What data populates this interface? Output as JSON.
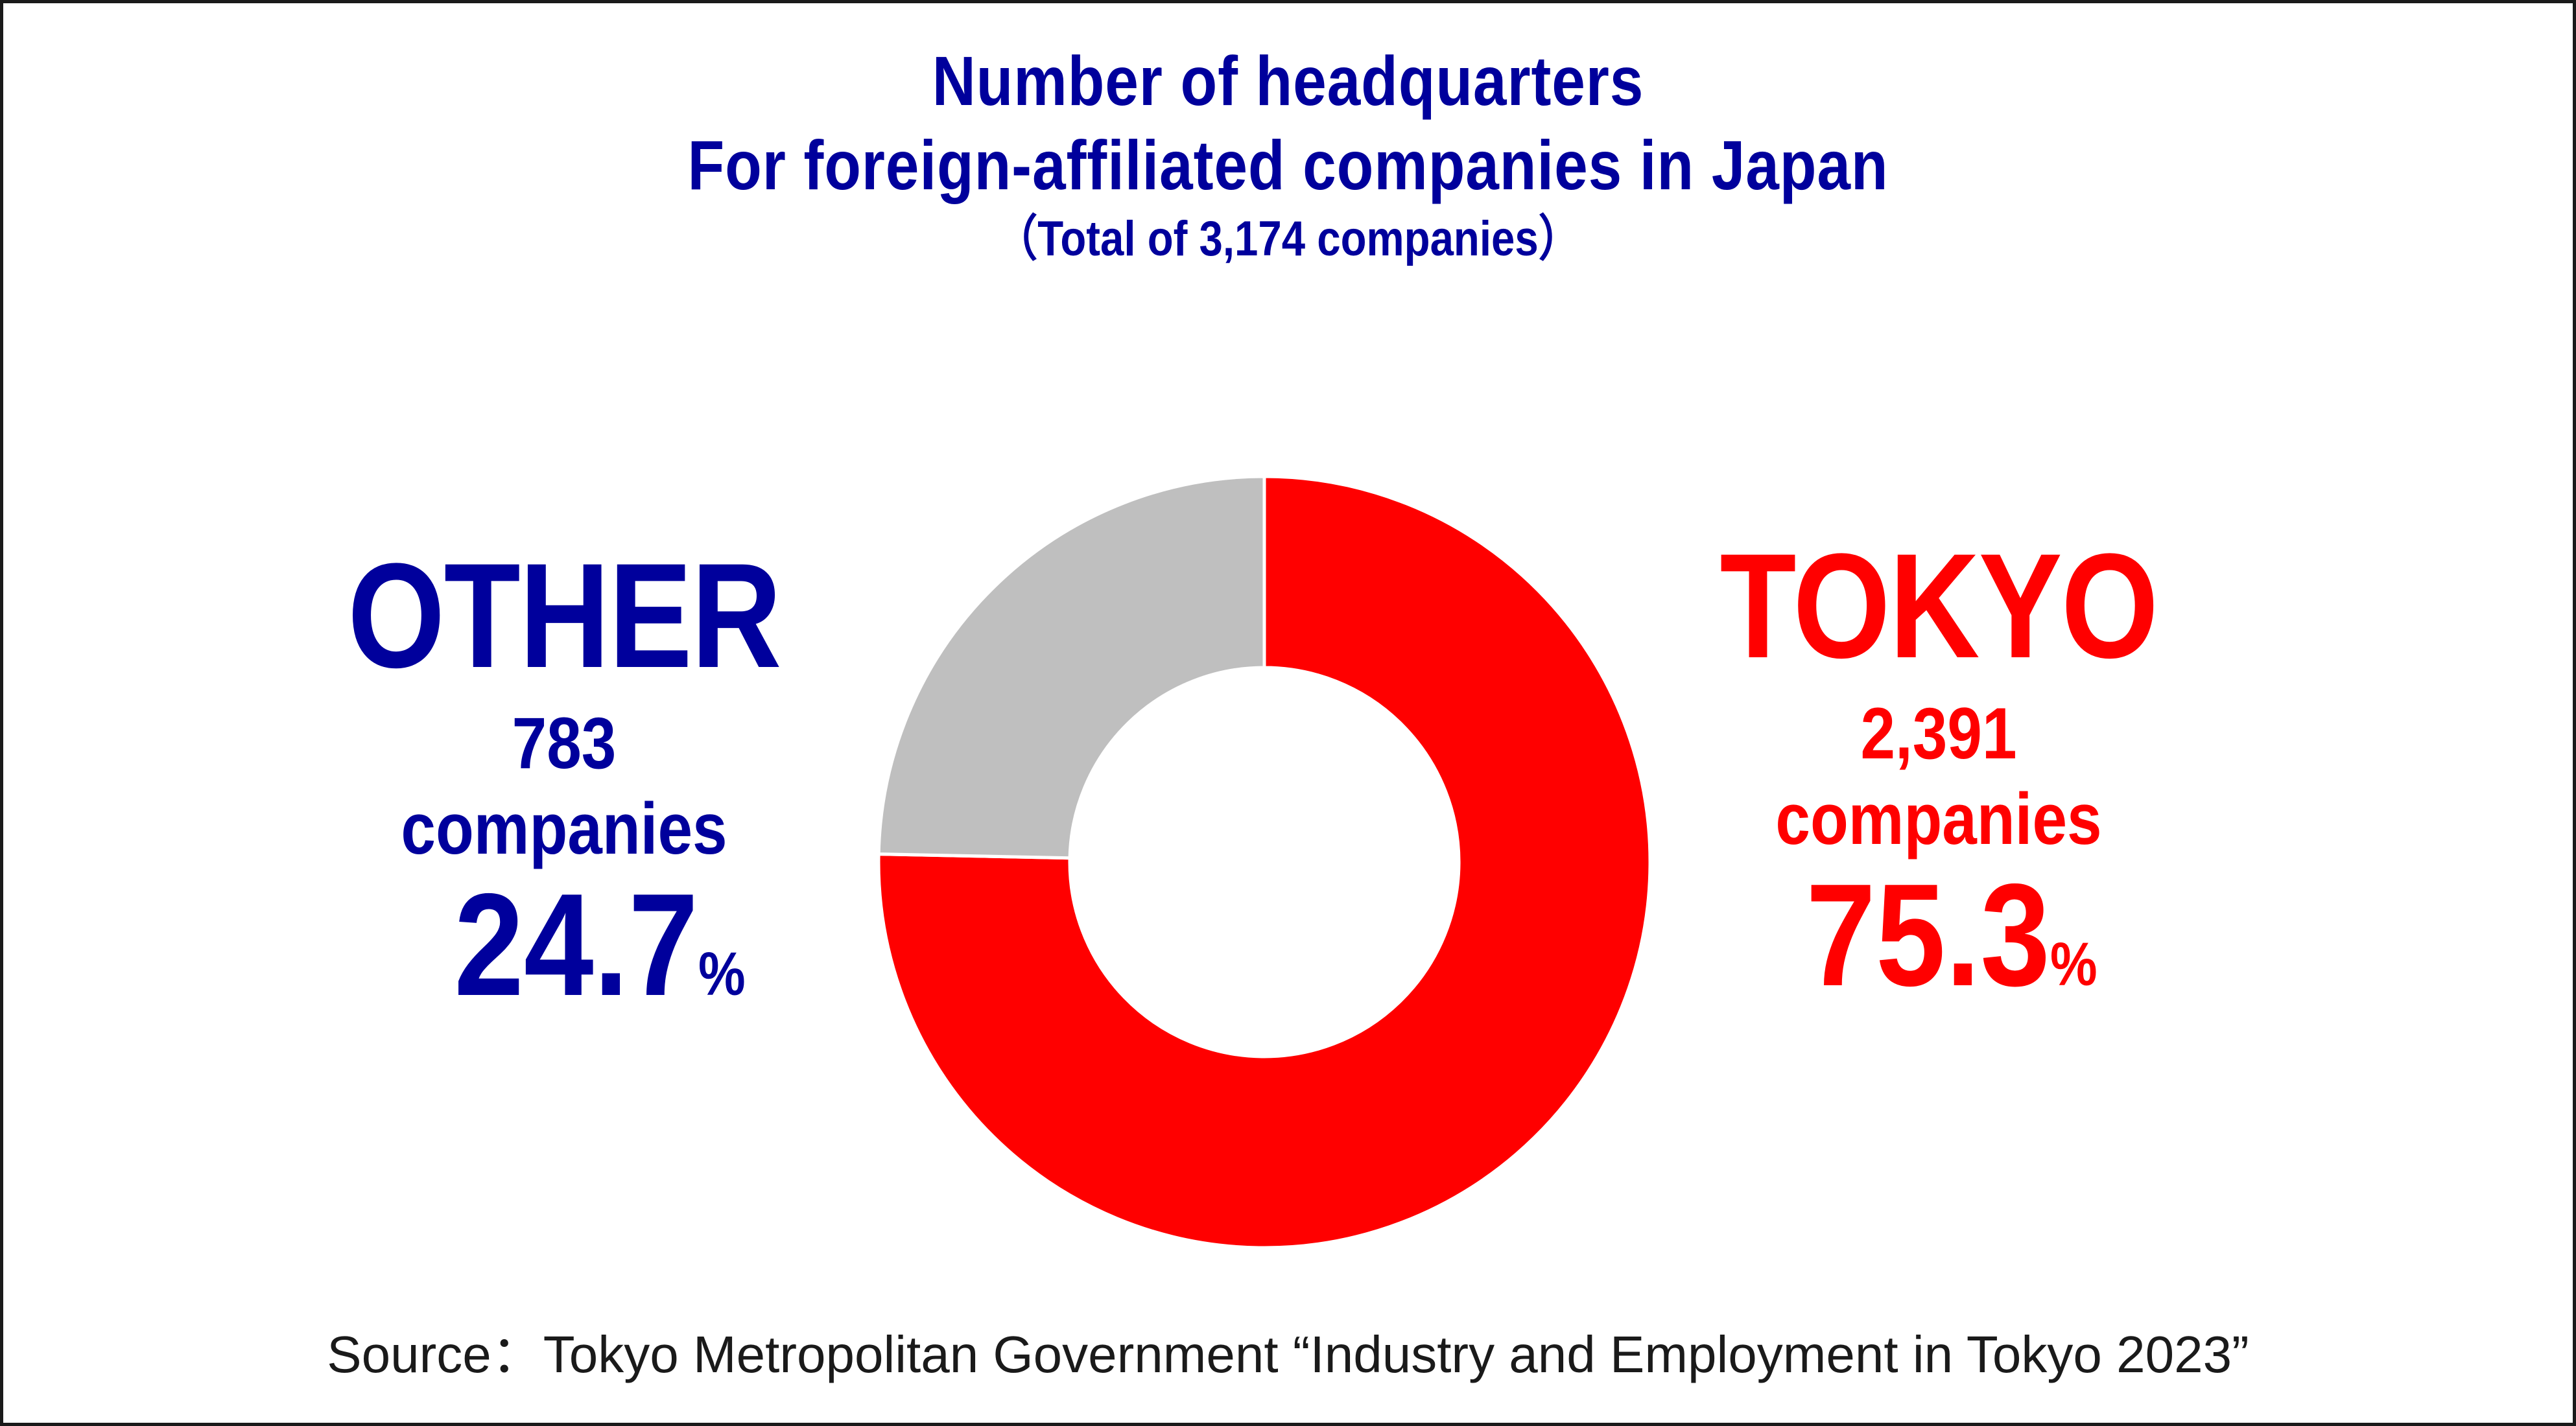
{
  "title": {
    "line1": "Number of headquarters",
    "line2": "For foreign-affiliated companies in Japan",
    "line3": "（Total of 3,174 companies）"
  },
  "colors": {
    "title": "#00009c",
    "other": "#00009c",
    "tokyo": "#ff0000",
    "other_slice": "#bfbfbf",
    "tokyo_slice": "#ff0000",
    "source_text": "#1a1a1a"
  },
  "labels": {
    "other": {
      "name": "OTHER",
      "count": "783",
      "unit": "companies",
      "pct": "24.7",
      "pct_sign": "%"
    },
    "tokyo": {
      "name": "TOKYO",
      "count": "2,391",
      "unit": "companies",
      "pct": "75.3",
      "pct_sign": "%"
    }
  },
  "source": "Source：Tokyo Metropolitan Government “Industry and Employment in Tokyo 2023”",
  "chart_data": {
    "type": "pie",
    "variant": "donut",
    "slices": [
      {
        "name": "TOKYO",
        "value": 2391,
        "percent": 75.3,
        "color": "#ff0000"
      },
      {
        "name": "OTHER",
        "value": 783,
        "percent": 24.7,
        "color": "#bfbfbf"
      }
    ],
    "total": 3174,
    "start_angle": "12 o'clock",
    "direction": "clockwise",
    "legend": "none"
  }
}
